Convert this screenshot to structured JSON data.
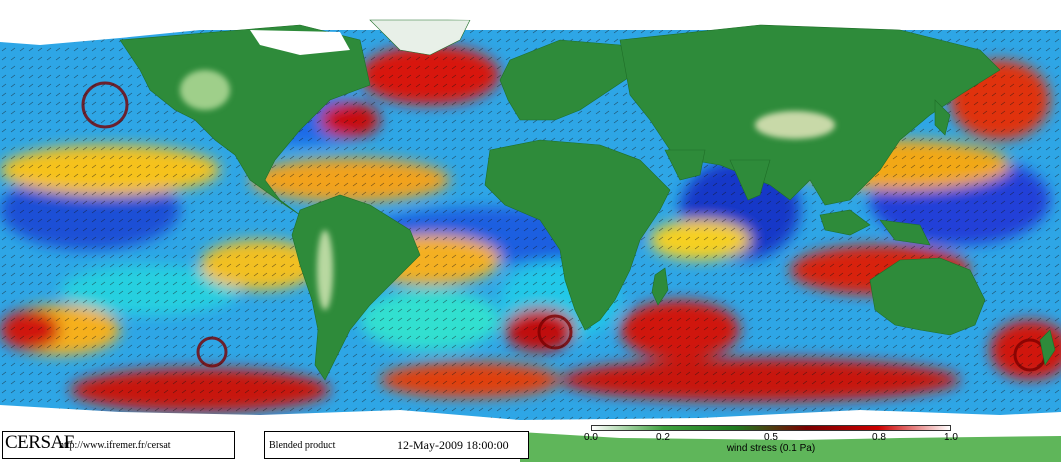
{
  "header": {
    "brand": "CERSAF",
    "url": "http://www.ifremer.fr/cersat"
  },
  "product": {
    "label": "Blended product",
    "datetime": "12-May-2009 18:00:00"
  },
  "colorbar": {
    "ticks": [
      "0.0",
      "0.2",
      "0.5",
      "0.8",
      "1.0"
    ],
    "tick_values": [
      0.0,
      0.2,
      0.5,
      0.8,
      1.0
    ],
    "range": [
      0.0,
      1.0
    ],
    "label": "wind stress (0.1 Pa)",
    "colors": [
      "#ffffff",
      "#3fa03f",
      "#1f7a1f",
      "#7a0000",
      "#cc0000",
      "#ffffff"
    ]
  },
  "colors": {
    "land": "#2e8b3a",
    "highland": "#c8d9a8",
    "ice": "#ffffff"
  }
}
